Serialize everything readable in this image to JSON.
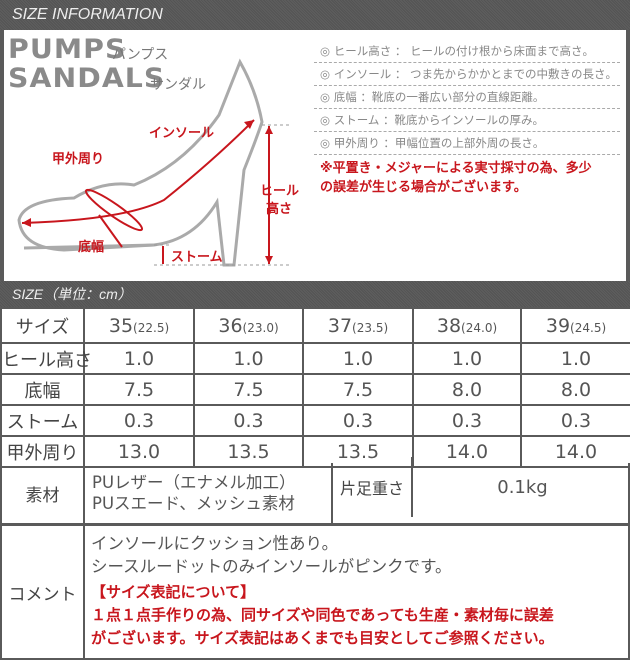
{
  "header": {
    "title": "SIZE INFORMATION"
  },
  "diagram": {
    "logo_line1": "PUMPS",
    "logo_line1_kana": "パンプス",
    "logo_line2": "SANDALS",
    "logo_line2_kana": "サンダル",
    "labels": {
      "insole": "インソール",
      "instep": "甲外周り",
      "heel_line1": "ヒール",
      "heel_line2": "高さ",
      "sole_width": "底幅",
      "storm": "ストーム"
    },
    "accent_color": "#c8161d"
  },
  "notes": [
    "◎ ヒール高さ ： ヒールの付け根から床面まで高さ。",
    "◎ インソール ： つま先からかかとまでの中敷きの長さ。",
    "◎ 底幅 ：靴底の一番広い部分の直線距離。",
    "◎ ストーム ：靴底からインソールの厚み。",
    "◎ 甲外周り ：甲幅位置の上部外周の長さ。"
  ],
  "warning": [
    "※平置き・メジャーによる実寸採寸の為、多少",
    "の誤差が生じる場合がございます。"
  ],
  "size_header": "SIZE（単位：cm）",
  "table": {
    "size_label": "サイズ",
    "sizes": [
      {
        "eu": "35",
        "jp": "(22.5)"
      },
      {
        "eu": "36",
        "jp": "(23.0)"
      },
      {
        "eu": "37",
        "jp": "(23.5)"
      },
      {
        "eu": "38",
        "jp": "(24.0)"
      },
      {
        "eu": "39",
        "jp": "(24.5)"
      }
    ],
    "rows": [
      {
        "label": "ヒール高さ",
        "values": [
          "1.0",
          "1.0",
          "1.0",
          "1.0",
          "1.0"
        ]
      },
      {
        "label": "底幅",
        "values": [
          "7.5",
          "7.5",
          "7.5",
          "8.0",
          "8.0"
        ]
      },
      {
        "label": "ストーム",
        "values": [
          "0.3",
          "0.3",
          "0.3",
          "0.3",
          "0.3"
        ]
      },
      {
        "label": "甲外周り",
        "values": [
          "13.0",
          "13.5",
          "13.5",
          "14.0",
          "14.0"
        ]
      }
    ]
  },
  "material": {
    "label": "素材",
    "line1": "PUレザー（エナメル加工）",
    "line2": "PUスエード、メッシュ素材",
    "weight_label": "片足重さ",
    "weight": "0.1kg"
  },
  "comment": {
    "label": "コメント",
    "line1": "インソールにクッション性あり。",
    "line2": "シースルードットのみインソールがピンクです。",
    "notice_title": "【サイズ表記について】",
    "notice_line1": "１点１点手作りの為、同サイズや同色であっても生産・素材毎に誤差",
    "notice_line2": "がございます。サイズ表記はあくまでも目安としてご参照ください。"
  }
}
